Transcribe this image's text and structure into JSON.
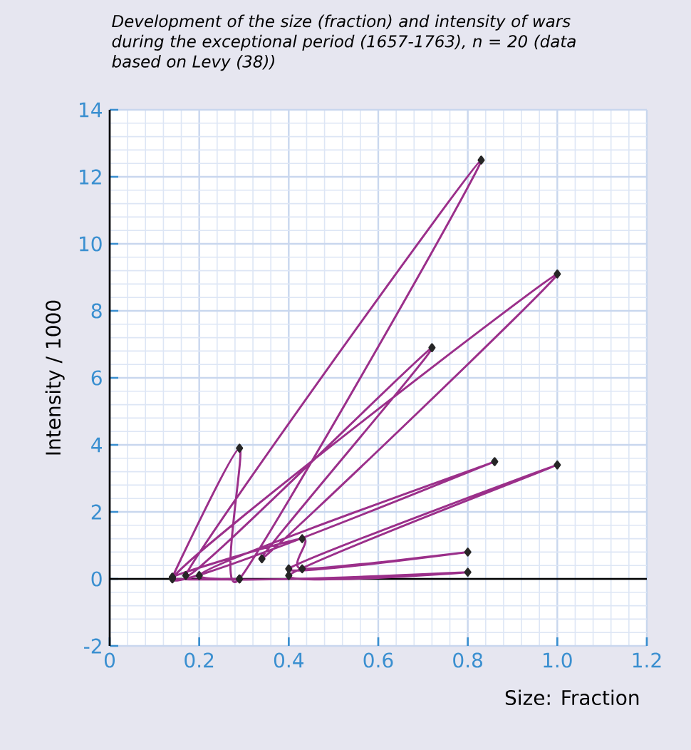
{
  "chart_data": {
    "type": "line",
    "title": "*Development of the size (fraction) and intensity of wars during the exceptional period (1657-1763), n = 20 (data based on Levy (38))*",
    "xlabel": "Size: Fraction",
    "ylabel": "Intensity / 1000",
    "xlim": [
      0,
      1.2
    ],
    "ylim": [
      -2,
      14
    ],
    "xticks": [
      0,
      0.2,
      0.4,
      0.6,
      0.8,
      {
        "value": 1.0,
        "label": "1.0"
      },
      1.2
    ],
    "yticks": [
      -2,
      0,
      2,
      4,
      6,
      8,
      10,
      12,
      14
    ],
    "grid": true,
    "marker": "diamond",
    "series": [
      {
        "color": "#9b2f8a",
        "x": [
          0.14,
          0.29,
          0.29,
          0.83,
          0.17,
          0.72,
          0.34,
          1.0,
          0.14,
          0.86,
          0.2,
          0.8,
          0.4,
          1.0,
          0.4,
          0.8,
          0.43,
          0.43,
          0.14,
          0.29
        ],
        "values": [
          0.05,
          3.9,
          0.0,
          12.5,
          0.1,
          6.9,
          0.6,
          9.1,
          0.0,
          3.5,
          0.1,
          0.2,
          0.1,
          3.4,
          0.3,
          0.8,
          0.3,
          1.2,
          0.05,
          0.0
        ]
      }
    ]
  }
}
